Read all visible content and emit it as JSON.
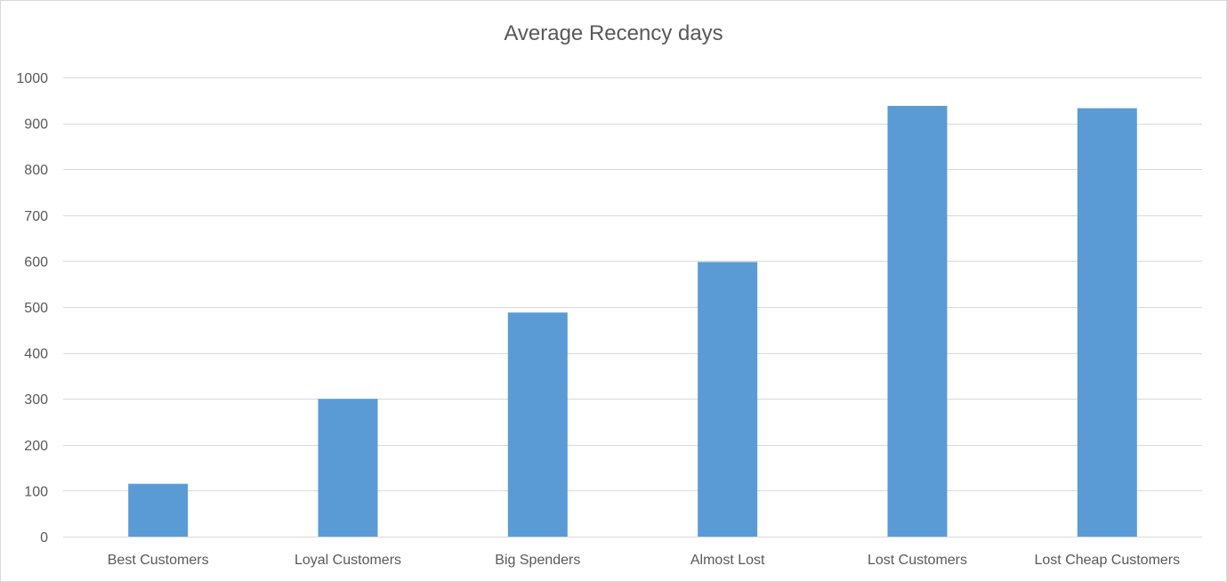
{
  "chart_data": {
    "type": "bar",
    "title": "Average Recency days",
    "categories": [
      "Best Customers",
      "Loyal Customers",
      "Big Spenders",
      "Almost Lost",
      "Lost Customers",
      "Lost Cheap Customers"
    ],
    "values": [
      115,
      300,
      488,
      598,
      938,
      933
    ],
    "ylim": [
      0,
      1000
    ],
    "yticks": [
      0,
      100,
      200,
      300,
      400,
      500,
      600,
      700,
      800,
      900,
      1000
    ],
    "grid": true,
    "legend": "none",
    "bar_color": "#5b9bd5",
    "grid_color": "#d9d9d9",
    "text_color": "#595959"
  }
}
